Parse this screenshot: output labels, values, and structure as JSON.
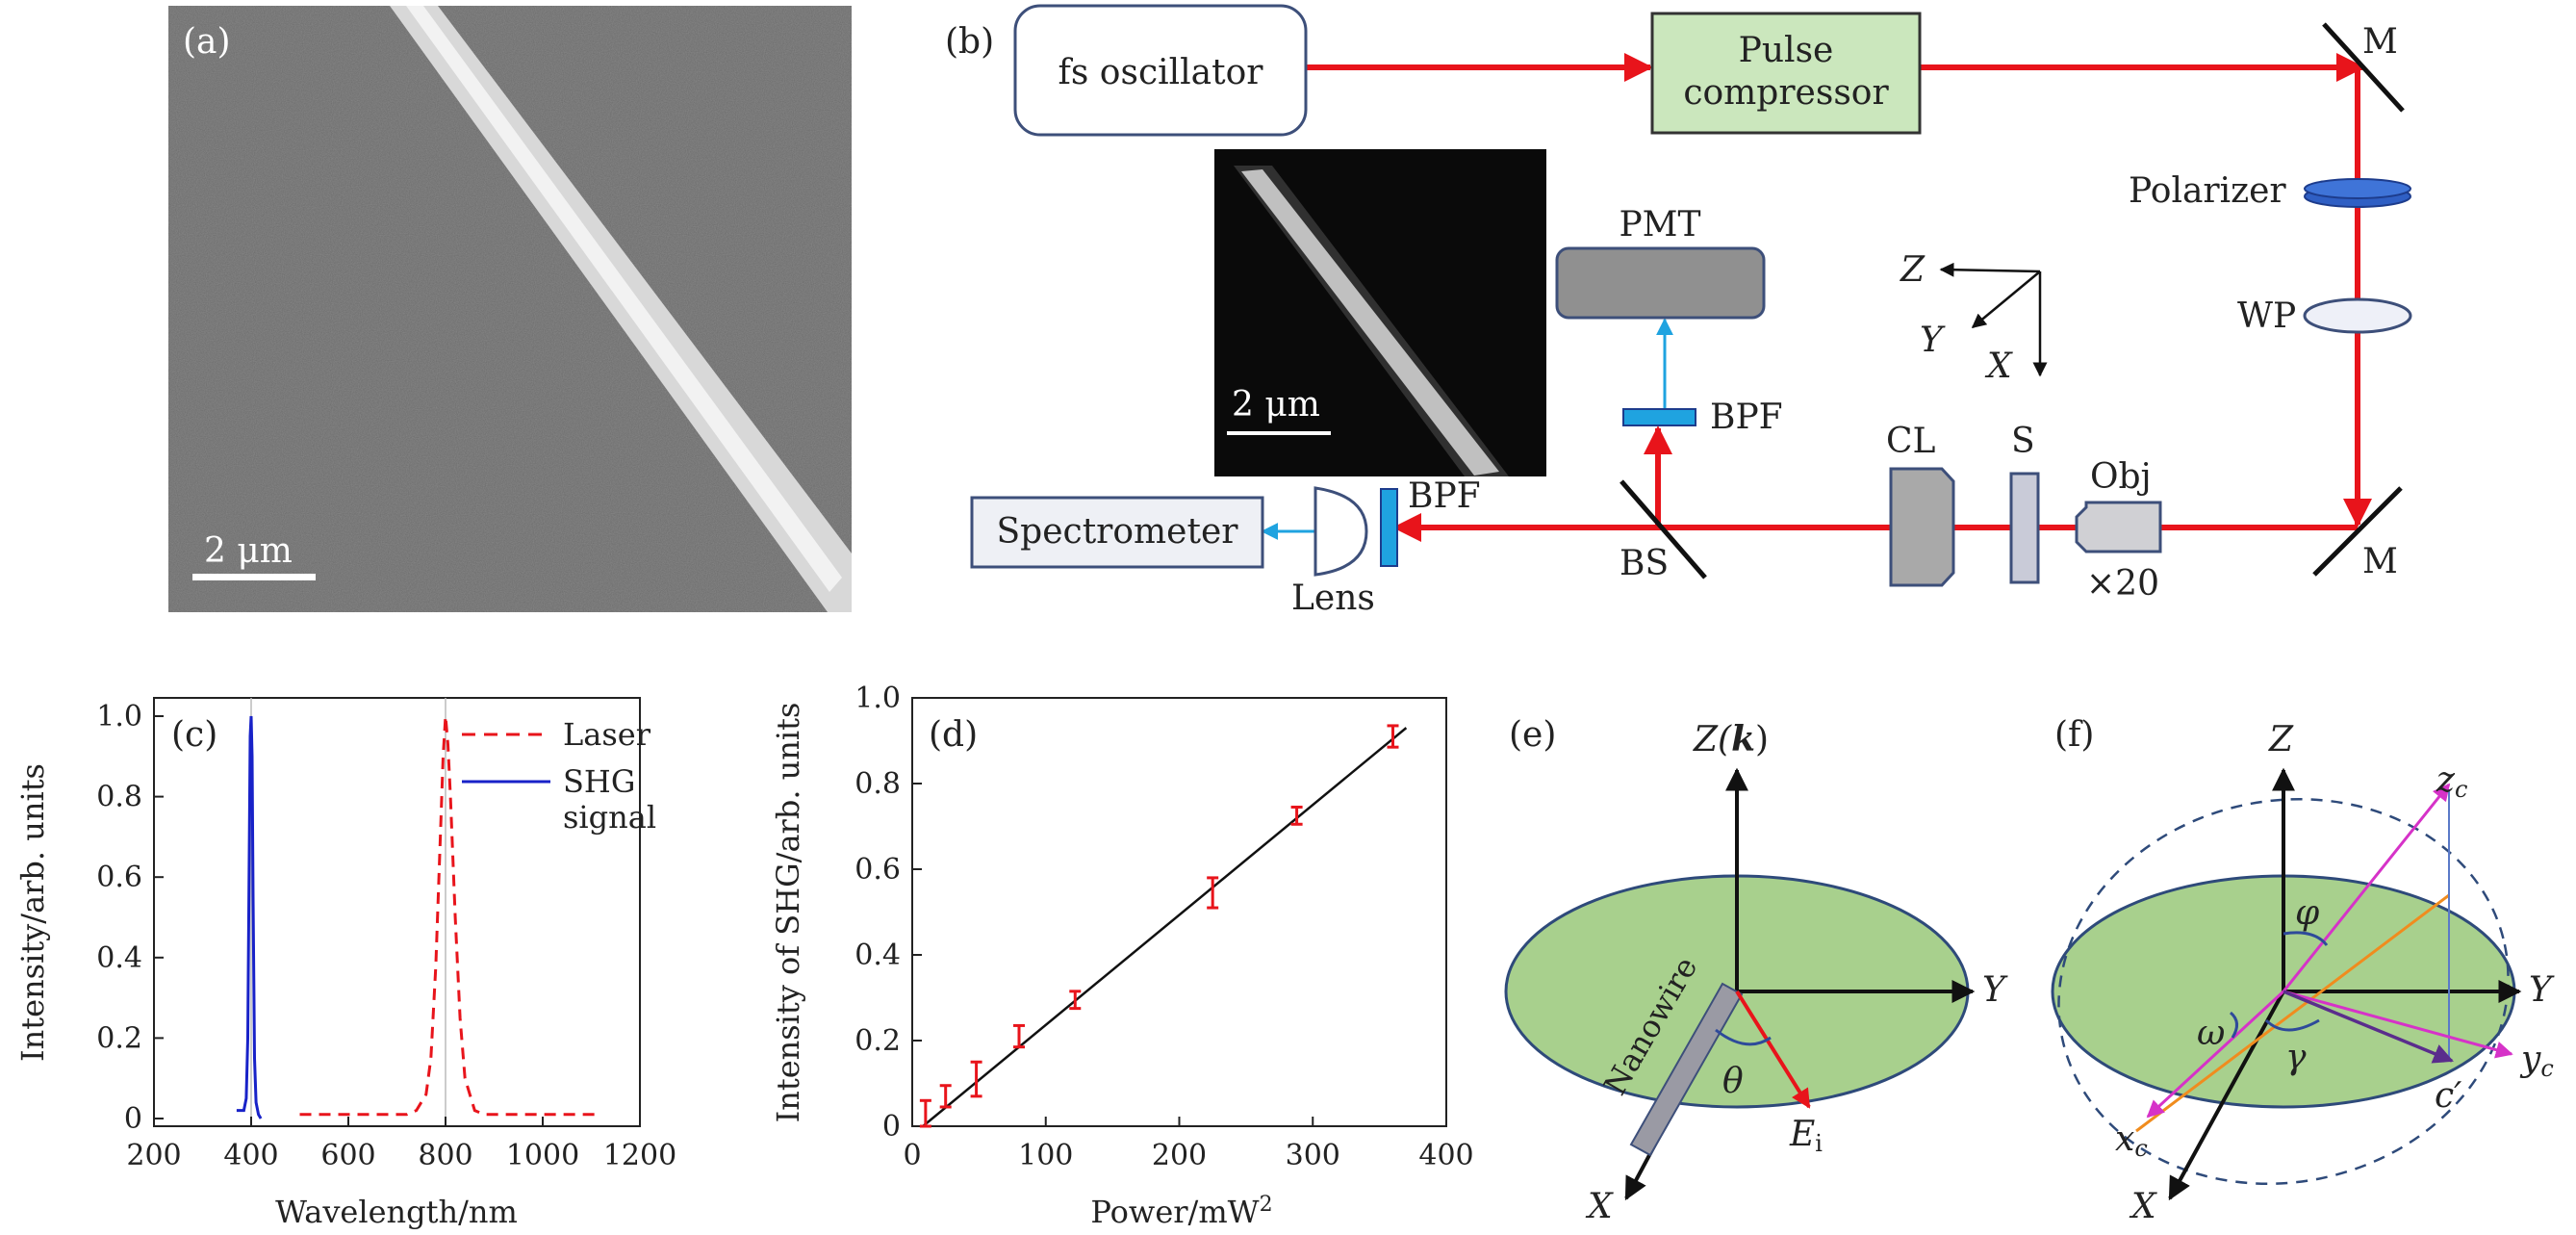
{
  "panels": {
    "a": {
      "label": "(a)",
      "scale_bar": "2 μm"
    },
    "b": {
      "label": "(b)",
      "components": {
        "oscillator": "fs oscillator",
        "compressor_line1": "Pulse",
        "compressor_line2": "compressor",
        "mirror_top": "M",
        "mirror_bottom": "M",
        "polarizer": "Polarizer",
        "wp": "WP",
        "obj": "Obj",
        "obj_mag": "×20",
        "sample": "S",
        "cl": "CL",
        "bs": "BS",
        "bpf_vertical": "BPF",
        "bpf_horizontal": "BPF",
        "pmt": "PMT",
        "lens": "Lens",
        "spectrometer": "Spectrometer",
        "inset_scale": "2 μm"
      },
      "axes": {
        "z": "Z",
        "y": "Y",
        "x": "X"
      },
      "colors": {
        "beam": "#e8141b",
        "signal": "#1fa3e0",
        "compressor_fill": "#cbe7bd",
        "pmt_fill": "#909090"
      }
    },
    "e": {
      "label": "(e)",
      "z_axis": "Z(",
      "z_axis_k": "k",
      "z_axis_close": ")",
      "y_axis": "Y",
      "x_axis": "X",
      "nanowire": "Nanowire",
      "theta": "θ",
      "field": "E",
      "field_sub": "i"
    },
    "f": {
      "label": "(f)",
      "z_axis": "Z",
      "y_axis": "Y",
      "x_axis": "X",
      "zc": "z",
      "zc_sub": "c",
      "yc": "y",
      "yc_sub": "c",
      "xc": "x",
      "xc_sub": "c",
      "cprime": "c′",
      "phi": "φ",
      "omega": "ω",
      "gamma": "γ"
    }
  },
  "chart_data": [
    {
      "panel": "(c)",
      "type": "line",
      "xlabel": "Wavelength/nm",
      "ylabel": "Intensity/arb. units",
      "xlim": [
        200,
        1200
      ],
      "ylim": [
        0,
        1.0
      ],
      "xticks": [
        200,
        400,
        600,
        800,
        1000,
        1200
      ],
      "yticks": [
        0,
        0.2,
        0.4,
        0.6,
        0.8,
        1.0
      ],
      "ytick_labels": [
        "0",
        "0.2",
        "0.4",
        "0.6",
        "0.8",
        "1.0"
      ],
      "legend_position": "top-right",
      "series": [
        {
          "name": "Laser",
          "style": "dashed",
          "color": "#e8141b",
          "x": [
            500,
            720,
            740,
            760,
            770,
            780,
            790,
            795,
            800,
            805,
            810,
            820,
            830,
            840,
            860,
            880,
            1120
          ],
          "y": [
            0.01,
            0.01,
            0.02,
            0.06,
            0.15,
            0.38,
            0.72,
            0.9,
            1.0,
            0.93,
            0.8,
            0.5,
            0.25,
            0.1,
            0.02,
            0.01,
            0.01
          ]
        },
        {
          "name": "SHG",
          "name_line2": "signal",
          "style": "solid",
          "color": "#1822c8",
          "x": [
            370,
            385,
            390,
            393,
            396,
            398,
            400,
            402,
            404,
            407,
            410,
            415,
            420
          ],
          "y": [
            0.02,
            0.02,
            0.05,
            0.2,
            0.65,
            0.95,
            1.0,
            0.9,
            0.55,
            0.15,
            0.04,
            0.01,
            0.0
          ]
        }
      ],
      "vlines": [
        400,
        800
      ]
    },
    {
      "panel": "(d)",
      "type": "scatter",
      "xlabel": "Power/mW",
      "xlabel_sup": "2",
      "ylabel": "Intensity of SHG/arb. units",
      "xlim": [
        0,
        400
      ],
      "ylim": [
        0,
        1.0
      ],
      "xticks": [
        0,
        100,
        200,
        300,
        400
      ],
      "yticks": [
        0,
        0.2,
        0.4,
        0.6,
        0.8,
        1.0
      ],
      "ytick_labels": [
        "0",
        "0.2",
        "0.4",
        "0.6",
        "0.8",
        "1.0"
      ],
      "points": [
        {
          "x": 10,
          "y": 0.03,
          "err": 0.03
        },
        {
          "x": 25,
          "y": 0.07,
          "err": 0.025
        },
        {
          "x": 48,
          "y": 0.11,
          "err": 0.04
        },
        {
          "x": 80,
          "y": 0.21,
          "err": 0.025
        },
        {
          "x": 122,
          "y": 0.295,
          "err": 0.02
        },
        {
          "x": 225,
          "y": 0.545,
          "err": 0.035
        },
        {
          "x": 288,
          "y": 0.725,
          "err": 0.02
        },
        {
          "x": 360,
          "y": 0.91,
          "err": 0.025
        }
      ],
      "fit": {
        "x": [
          8,
          370
        ],
        "y": [
          0.0,
          0.93
        ]
      },
      "point_color": "#e8141b"
    }
  ]
}
